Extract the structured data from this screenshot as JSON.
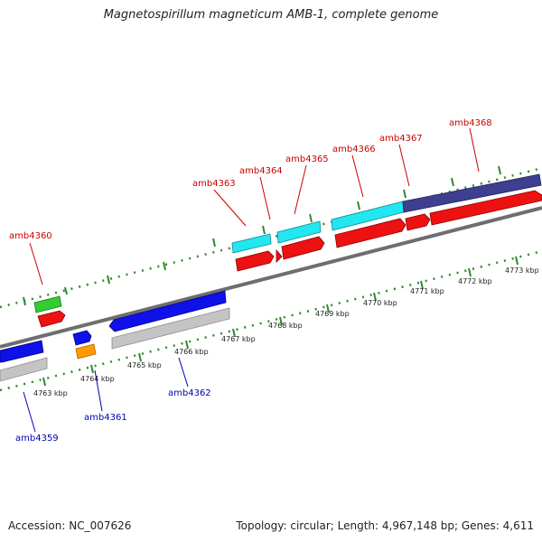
{
  "title": "Magnetospirillum magneticum AMB-1, complete genome",
  "footer": {
    "accession": "Accession: NC_007626",
    "topology": "Topology: circular; Length: 4,967,148 bp; Genes: 4,611"
  },
  "colors": {
    "backbone": "#6e6e6e",
    "tick": "#2e8b2e",
    "label_forward": "#cc0000",
    "label_reverse": "#0000bb",
    "blue": "#1010e8",
    "gray": "#c4c4c4",
    "red": "#ee1111",
    "cyan": "#22e6f0",
    "green": "#33cc33",
    "orange": "#ff9a00",
    "purple": "#3f3f8f"
  },
  "ruler_labels": [
    "4763 kbp",
    "4764 kbp",
    "4765 kbp",
    "4766 kbp",
    "4767 kbp",
    "4768 kbp",
    "4769 kbp",
    "4770 kbp",
    "4771 kbp",
    "4772 kbp",
    "4773 kbp"
  ],
  "gene_labels": {
    "forward": [
      "amb4360",
      "amb4363",
      "amb4364",
      "amb4365",
      "amb4366",
      "amb4367",
      "amb4368"
    ],
    "reverse": [
      "amb4359",
      "amb4361",
      "amb4362"
    ]
  }
}
